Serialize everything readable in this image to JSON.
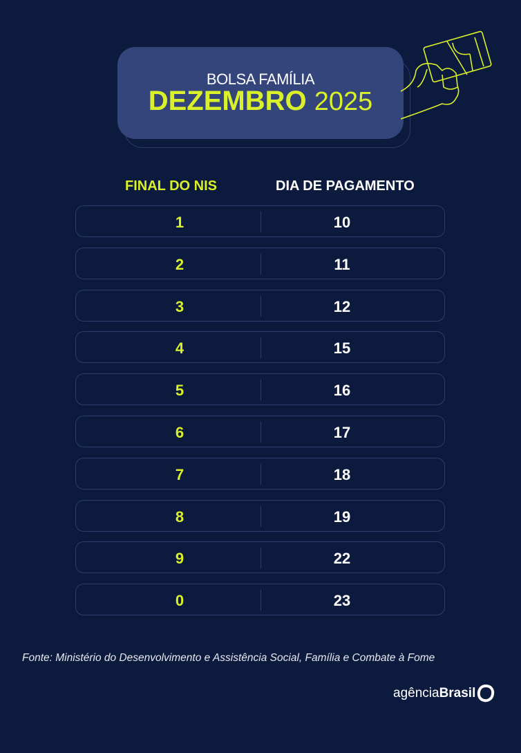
{
  "header": {
    "subtitle": "BOLSA FAMÍLIA",
    "month": "DEZEMBRO",
    "year": "2025"
  },
  "columns": {
    "nis": "FINAL DO NIS",
    "day": "DIA DE PAGAMENTO"
  },
  "rows": [
    {
      "nis": "1",
      "day": "10"
    },
    {
      "nis": "2",
      "day": "11"
    },
    {
      "nis": "3",
      "day": "12"
    },
    {
      "nis": "4",
      "day": "15"
    },
    {
      "nis": "5",
      "day": "16"
    },
    {
      "nis": "6",
      "day": "17"
    },
    {
      "nis": "7",
      "day": "18"
    },
    {
      "nis": "8",
      "day": "19"
    },
    {
      "nis": "9",
      "day": "22"
    },
    {
      "nis": "0",
      "day": "23"
    }
  ],
  "source": "Fonte: Ministério do Desenvolvimento e Assistência Social, Família e Combate à Fome",
  "logo": {
    "light": "agência",
    "bold": "Brasil"
  },
  "colors": {
    "background": "#0c1a3d",
    "header_box": "#33457a",
    "accent": "#d9f02a"
  },
  "icons": {
    "hand": "hand-holding-card-icon",
    "logo_mark": "agencia-brasil-logo-icon"
  }
}
